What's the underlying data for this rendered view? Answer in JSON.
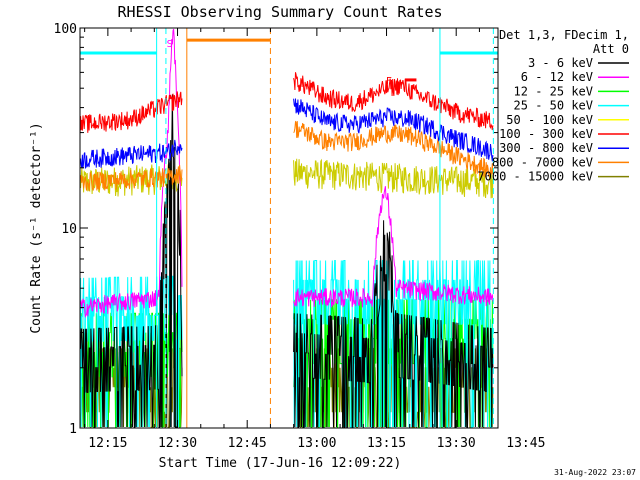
{
  "chart_data": {
    "type": "line",
    "title": "RHESSI Observing Summary Count Rates",
    "xlabel": "Start Time (17-Jun-16 12:09:22)",
    "ylabel": "Count Rate (s⁻¹ detector⁻¹)",
    "yscale": "log",
    "ylim": [
      1,
      100
    ],
    "xlim_minutes_after_1200": [
      9,
      99
    ],
    "x_ticks": [
      {
        "m": 15,
        "label": "12:15"
      },
      {
        "m": 30,
        "label": "12:30"
      },
      {
        "m": 45,
        "label": "12:45"
      },
      {
        "m": 60,
        "label": "13:00"
      },
      {
        "m": 75,
        "label": "13:15"
      },
      {
        "m": 90,
        "label": "13:30"
      },
      {
        "m": 105,
        "label": "13:45"
      }
    ],
    "y_ticks": [
      {
        "v": 1,
        "label": "1"
      },
      {
        "v": 10,
        "label": "10"
      },
      {
        "v": 100,
        "label": "100"
      }
    ],
    "legend_header": [
      "Det 1,3, FDecim 1,",
      "Att 0"
    ],
    "legend_position": "right",
    "series": [
      {
        "name": "3 - 6 keV",
        "color": "#000000",
        "values": [
          [
            9,
            2.5
          ],
          [
            26,
            2.6
          ],
          [
            28,
            15
          ],
          [
            29,
            40
          ],
          [
            30,
            20
          ],
          [
            31,
            2.5
          ],
          [
            55,
            3
          ],
          [
            72,
            2.8
          ],
          [
            74,
            8
          ],
          [
            75,
            10
          ],
          [
            77,
            3
          ],
          [
            98,
            2.5
          ]
        ]
      },
      {
        "name": "6 - 12 keV",
        "color": "#ff00ff",
        "values": [
          [
            9,
            4
          ],
          [
            26,
            4.5
          ],
          [
            28,
            30
          ],
          [
            29,
            100
          ],
          [
            30,
            35
          ],
          [
            31,
            4.5
          ],
          [
            55,
            4.5
          ],
          [
            72,
            4.5
          ],
          [
            74,
            14
          ],
          [
            75,
            15
          ],
          [
            77,
            5
          ],
          [
            98,
            4.5
          ]
        ]
      },
      {
        "name": "12 - 25 keV",
        "color": "#00ff00",
        "values": [
          [
            9,
            3
          ],
          [
            31,
            3
          ],
          [
            55,
            3.5
          ],
          [
            98,
            3.5
          ]
        ]
      },
      {
        "name": "25 - 50 keV",
        "color": "#00ffff",
        "values": [
          [
            9,
            4.5
          ],
          [
            31,
            4.6
          ],
          [
            55,
            5.5
          ],
          [
            98,
            5.5
          ]
        ]
      },
      {
        "name": "50 - 100 keV",
        "color": "#ffff00",
        "values": []
      },
      {
        "name": "100 - 300 keV",
        "color": "#ff0000",
        "values": [
          [
            9,
            33
          ],
          [
            20,
            35
          ],
          [
            28,
            42
          ],
          [
            31,
            45
          ],
          [
            55,
            55
          ],
          [
            62,
            45
          ],
          [
            68,
            42
          ],
          [
            75,
            50
          ],
          [
            78,
            52
          ],
          [
            82,
            46
          ],
          [
            90,
            38
          ],
          [
            98,
            34
          ]
        ]
      },
      {
        "name": "300 - 800 keV",
        "color": "#0000ff",
        "values": [
          [
            9,
            22
          ],
          [
            28,
            24
          ],
          [
            31,
            27
          ],
          [
            55,
            42
          ],
          [
            62,
            34
          ],
          [
            68,
            33
          ],
          [
            75,
            36
          ],
          [
            80,
            35
          ],
          [
            90,
            28
          ],
          [
            98,
            24
          ]
        ]
      },
      {
        "name": "800 - 7000 keV",
        "color": "#ff8000",
        "values": [
          [
            9,
            17
          ],
          [
            28,
            18
          ],
          [
            31,
            19
          ],
          [
            55,
            32
          ],
          [
            62,
            27
          ],
          [
            68,
            27
          ],
          [
            75,
            30
          ],
          [
            80,
            29
          ],
          [
            90,
            23
          ],
          [
            98,
            19
          ]
        ]
      },
      {
        "name": "7000 - 15000 keV",
        "color": "#808000",
        "values": [
          [
            9,
            2
          ],
          [
            31,
            2
          ],
          [
            55,
            2
          ],
          [
            98,
            2
          ]
        ]
      }
    ],
    "extra_traces": [
      {
        "color": "#cccc00",
        "values": [
          [
            9,
            17
          ],
          [
            31,
            18
          ],
          [
            55,
            19
          ],
          [
            98,
            17
          ]
        ]
      }
    ],
    "saa_bars": [
      {
        "start": 9,
        "end": 25.5,
        "y": 75,
        "color": "#00ffff"
      },
      {
        "start": 86.5,
        "end": 99,
        "y": 75,
        "color": "#00ffff"
      }
    ],
    "night_bar": {
      "start": 32,
      "end": 50,
      "y": 87,
      "color": "#ff8000"
    },
    "flare_bar": {
      "start": 77,
      "end": 79.5,
      "y": 55,
      "color": "#ff0000"
    },
    "vlines": [
      {
        "m": 25.5,
        "color": "#00ffff",
        "dash": false
      },
      {
        "m": 27.5,
        "color": "#00ffff",
        "dash": true
      },
      {
        "m": 32,
        "color": "#ff8000",
        "dash": false
      },
      {
        "m": 50,
        "color": "#ff8000",
        "dash": true
      },
      {
        "m": 86.5,
        "color": "#00ffff",
        "dash": false
      },
      {
        "m": 98,
        "color": "#00ffff",
        "dash": true
      }
    ],
    "annotations": [
      {
        "text": "S",
        "m": 28.3,
        "y": 84,
        "color": "#ff00ff"
      },
      {
        "text": "F",
        "m": 75.5,
        "y": 55,
        "color": "#ff0000"
      }
    ],
    "footer": "31-Aug-2022 23:07"
  }
}
